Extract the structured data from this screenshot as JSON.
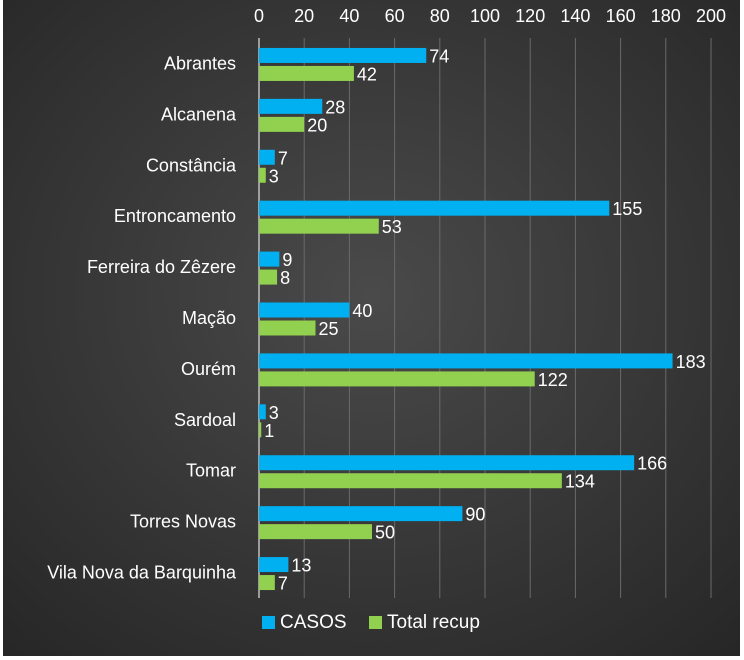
{
  "chart_data": {
    "type": "bar",
    "orientation": "horizontal",
    "categories": [
      "Abrantes",
      "Alcanena",
      "Constância",
      "Entroncamento",
      "Ferreira do Zêzere",
      "Mação",
      "Ourém",
      "Sardoal",
      "Tomar",
      "Torres Novas",
      "Vila Nova da Barquinha"
    ],
    "series": [
      {
        "name": "CASOS",
        "values": [
          74,
          28,
          7,
          155,
          9,
          40,
          183,
          3,
          166,
          90,
          13
        ]
      },
      {
        "name": "Total recup",
        "values": [
          42,
          20,
          3,
          53,
          8,
          25,
          122,
          1,
          134,
          50,
          7
        ]
      }
    ],
    "xlim": [
      0,
      200
    ],
    "xticks": [
      "0",
      "20",
      "40",
      "60",
      "80",
      "100",
      "120",
      "140",
      "160",
      "180",
      "200"
    ],
    "axis_position": "top",
    "grid": "vertical",
    "legend": "bottom-center",
    "colors": {
      "CASOS": "#00b0f0",
      "Total recup": "#92d050",
      "background": "#3a3a3a",
      "text": "#ffffff",
      "grid": "#6a6a6a"
    },
    "title": "",
    "xlabel": "",
    "ylabel": ""
  }
}
